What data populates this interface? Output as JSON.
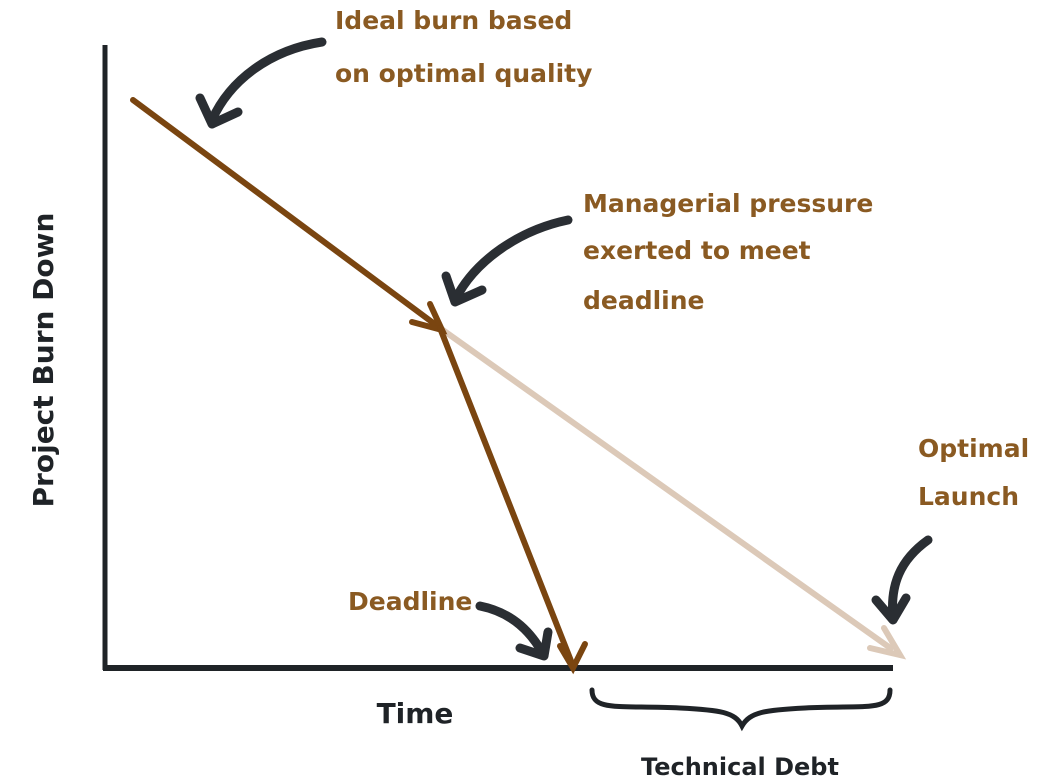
{
  "y_axis_label": "Project Burn Down",
  "x_axis_label": "Time",
  "brace_label": "Technical Debt",
  "annotations": [
    {
      "lines": [
        "Ideal burn based",
        "on optimal quality"
      ]
    },
    {
      "lines": [
        "Managerial pressure",
        "exerted to meet",
        "deadline"
      ]
    },
    {
      "lines": [
        "Optimal",
        "Launch"
      ]
    },
    {
      "lines": [
        "Deadline"
      ]
    }
  ]
}
